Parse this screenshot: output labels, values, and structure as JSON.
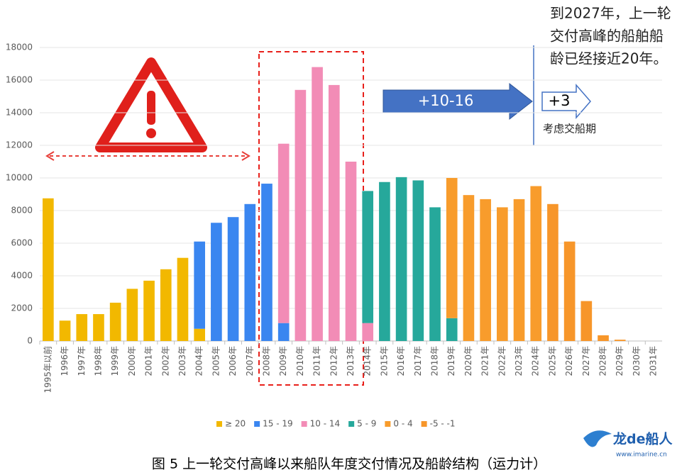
{
  "chart_data": {
    "type": "bar",
    "stacked": true,
    "categories": [
      "1995年以前",
      "1996年",
      "1997年",
      "1998年",
      "1999年",
      "2000年",
      "2001年",
      "2002年",
      "2003年",
      "2004年",
      "2005年",
      "2006年",
      "2007年",
      "2008年",
      "2009年",
      "2010年",
      "2011年",
      "2012年",
      "2013年",
      "2014年",
      "2015年",
      "2016年",
      "2017年",
      "2018年",
      "2019年",
      "2020年",
      "2021年",
      "2022年",
      "2023年",
      "2024年",
      "2025年",
      "2026年",
      "2027年",
      "2028年",
      "2029年",
      "2030年",
      "2031年"
    ],
    "series": [
      {
        "name": "≥ 20",
        "color": "#f2b800",
        "values": [
          8750,
          1250,
          1650,
          1650,
          2350,
          3200,
          3700,
          4400,
          5100,
          750,
          null,
          null,
          null,
          null,
          null,
          null,
          null,
          null,
          null,
          null,
          null,
          null,
          null,
          null,
          null,
          null,
          null,
          null,
          null,
          null,
          null,
          null,
          null,
          null,
          null,
          null,
          null
        ]
      },
      {
        "name": "15 - 19",
        "color": "#3a86f0",
        "values": [
          null,
          null,
          null,
          null,
          null,
          null,
          null,
          null,
          null,
          5350,
          7250,
          7600,
          8400,
          9650,
          1100,
          null,
          null,
          null,
          null,
          null,
          null,
          null,
          null,
          null,
          null,
          null,
          null,
          null,
          null,
          null,
          null,
          null,
          null,
          null,
          null,
          null,
          null
        ]
      },
      {
        "name": "10 - 14",
        "color": "#f28cb6",
        "values": [
          null,
          null,
          null,
          null,
          null,
          null,
          null,
          null,
          null,
          null,
          null,
          null,
          null,
          null,
          11000,
          15400,
          16800,
          15700,
          11000,
          1100,
          null,
          null,
          null,
          null,
          null,
          null,
          null,
          null,
          null,
          null,
          null,
          null,
          null,
          null,
          null,
          null,
          null
        ]
      },
      {
        "name": "5 - 9",
        "color": "#26a89b",
        "values": [
          null,
          null,
          null,
          null,
          null,
          null,
          null,
          null,
          null,
          null,
          null,
          null,
          null,
          null,
          null,
          null,
          null,
          null,
          null,
          8100,
          9750,
          10050,
          9850,
          8200,
          1400,
          null,
          null,
          null,
          null,
          null,
          null,
          null,
          null,
          null,
          null,
          null,
          null
        ]
      },
      {
        "name": "0 - 4",
        "color": "#f89c2c",
        "values": [
          null,
          null,
          null,
          null,
          null,
          null,
          null,
          null,
          null,
          null,
          null,
          null,
          null,
          null,
          null,
          null,
          null,
          null,
          null,
          null,
          null,
          null,
          null,
          null,
          8600,
          8950,
          8700,
          8200,
          8700,
          9500,
          null,
          null,
          null,
          null,
          null,
          null,
          null
        ]
      },
      {
        "name": "-5 - -1",
        "color": "#f7962a",
        "values": [
          null,
          null,
          null,
          null,
          null,
          null,
          null,
          null,
          null,
          null,
          null,
          null,
          null,
          null,
          null,
          null,
          null,
          null,
          null,
          null,
          null,
          null,
          null,
          null,
          null,
          null,
          null,
          null,
          null,
          null,
          8400,
          6100,
          2450,
          350,
          80,
          null,
          null
        ]
      }
    ],
    "ylim": [
      0,
      18000
    ],
    "yticks": [
      0,
      2000,
      4000,
      6000,
      8000,
      10000,
      12000,
      14000,
      16000,
      18000
    ],
    "grid": true,
    "annotations": {
      "note": [
        "到2027年，上一轮",
        "交付高峰的船舶船",
        "龄已经接近20年。"
      ],
      "arrow1": "+10-16",
      "arrow2": "+3",
      "arrow2_note": "考虑交船期"
    },
    "caption": "图 5  上一轮交付高峰以来船队年度交付情况及船龄结构（运力计）",
    "logo": {
      "name": "龙de船人",
      "url": "www.imarine.cn"
    }
  }
}
